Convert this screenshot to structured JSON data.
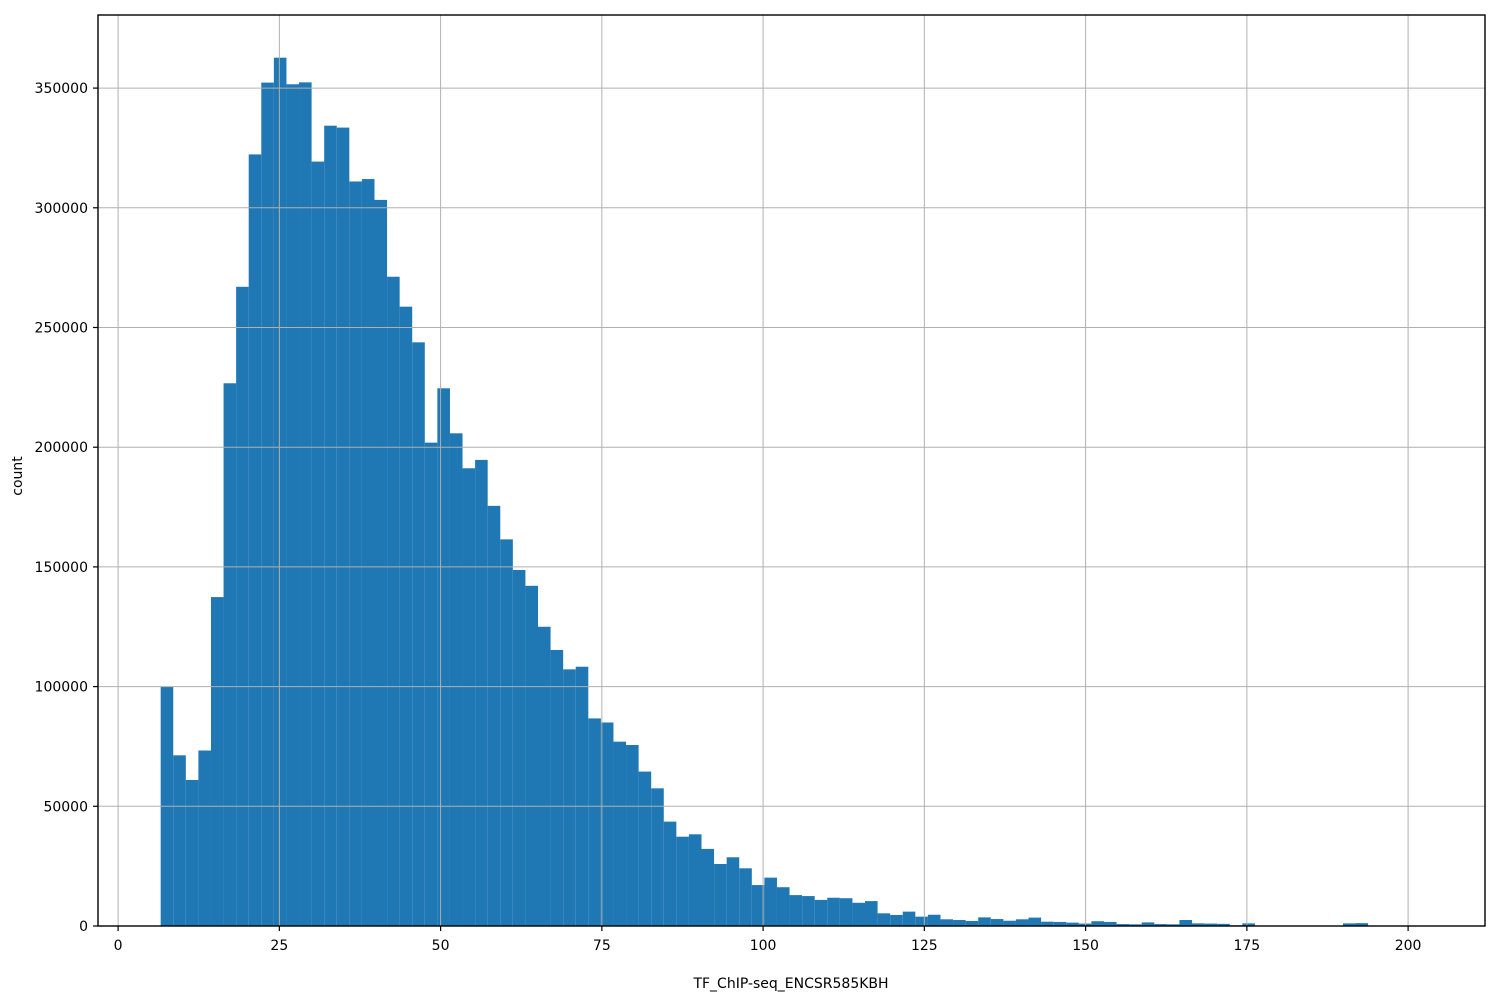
{
  "figure": {
    "background": "#ffffff"
  },
  "chart_data": {
    "type": "histogram",
    "title": "",
    "xlabel": "TF_ChIP-seq_ENCSR585KBH",
    "ylabel": "count",
    "x_ticks": [
      0,
      25,
      50,
      75,
      100,
      125,
      150,
      175,
      200
    ],
    "y_ticks": [
      0,
      50000,
      100000,
      150000,
      200000,
      250000,
      300000,
      350000
    ],
    "xlim": [
      -3.1,
      211.9
    ],
    "ylim": [
      0,
      380500
    ],
    "grid": true,
    "legend": "none",
    "bar_color": "#1f77b4",
    "grid_color": "#b0b0b0",
    "spine_color": "#000000",
    "bin_start": 6.6,
    "bin_width": 1.95,
    "counts": [
      100000,
      71300,
      61000,
      73300,
      137400,
      226700,
      267000,
      322300,
      352300,
      362700,
      351600,
      352400,
      319300,
      334300,
      333500,
      311000,
      312000,
      303300,
      271200,
      258700,
      243800,
      201900,
      224600,
      205800,
      191200,
      194700,
      175500,
      161500,
      148700,
      142100,
      125000,
      115300,
      107200,
      108300,
      86700,
      85000,
      77000,
      75600,
      64500,
      57500,
      43600,
      37300,
      38300,
      32200,
      25900,
      28700,
      24100,
      17100,
      20200,
      16200,
      12900,
      12500,
      10900,
      11800,
      11600,
      9700,
      10400,
      5300,
      4600,
      6000,
      3900,
      4700,
      2800,
      2500,
      2100,
      3600,
      2900,
      2200,
      2800,
      3500,
      1800,
      1700,
      1400,
      1000,
      2000,
      1700,
      800,
      700,
      1500,
      800,
      700,
      2500,
      1100,
      1000,
      900,
      300,
      1100,
      200,
      100,
      100,
      80,
      60,
      50,
      40,
      1100,
      1200,
      50,
      30
    ]
  }
}
